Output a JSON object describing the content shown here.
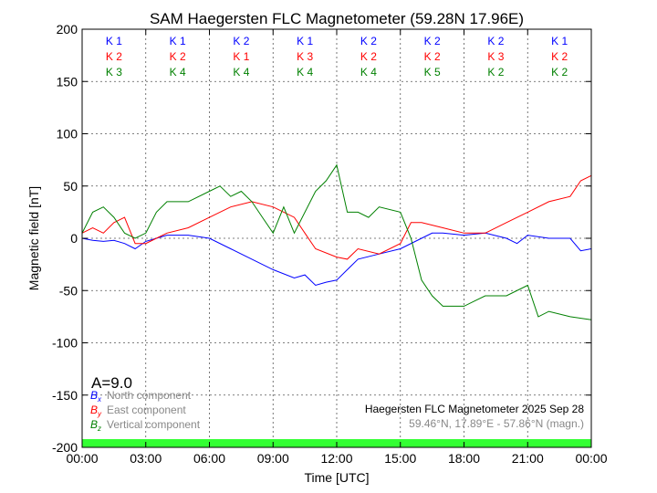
{
  "chart_data": {
    "type": "line",
    "title": "SAM Haegersten FLC Magnetometer (59.28N 17.96E)",
    "xlabel": "Time [UTC]",
    "ylabel": "Magnetic field [nT]",
    "xlim": [
      0,
      24
    ],
    "ylim": [
      -200,
      200
    ],
    "grid": true,
    "x_tick_labels": [
      "00:00",
      "03:00",
      "06:00",
      "09:00",
      "12:00",
      "15:00",
      "18:00",
      "21:00",
      "00:00"
    ],
    "y_ticks": [
      200,
      150,
      100,
      50,
      0,
      -50,
      -100,
      -150,
      -200
    ],
    "activity_index": "A=9.0",
    "footer_title": "Haegersten FLC Magnetometer 2025 Sep 28",
    "footer_coords": "59.46°N, 17.89°E - 57.86°N (magn.)",
    "k_indices": {
      "x": [
        "K 1",
        "K 1",
        "K 2",
        "K 1",
        "K 2",
        "K 2",
        "K 2",
        "K 1"
      ],
      "y": [
        "K 2",
        "K 2",
        "K 1",
        "K 3",
        "K 2",
        "K 2",
        "K 3",
        "K 2"
      ],
      "z": [
        "K 3",
        "K 4",
        "K 4",
        "K 4",
        "K 4",
        "K 5",
        "K 2",
        "K 2"
      ]
    },
    "status_bar_color": "#33ff33",
    "series": [
      {
        "name": "North component",
        "symbol": "B",
        "sub": "x",
        "color": "#0000ff",
        "x": [
          0,
          0.5,
          1,
          1.5,
          2,
          2.5,
          3,
          3.5,
          4,
          5,
          6,
          7,
          8,
          9,
          10,
          10.5,
          11,
          11.5,
          12,
          12.5,
          13,
          14,
          15,
          16,
          16.5,
          17,
          18,
          19,
          20,
          20.5,
          21,
          22,
          23,
          23.5,
          24
        ],
        "y": [
          0,
          -2,
          -3,
          -2,
          -5,
          -10,
          -3,
          0,
          3,
          3,
          0,
          -10,
          -20,
          -30,
          -38,
          -35,
          -45,
          -42,
          -40,
          -30,
          -20,
          -15,
          -10,
          0,
          5,
          5,
          3,
          5,
          0,
          -5,
          3,
          0,
          0,
          -12,
          -10
        ]
      },
      {
        "name": "East component",
        "symbol": "B",
        "sub": "y",
        "color": "#ff0000",
        "x": [
          0,
          0.5,
          1,
          1.5,
          2,
          2.5,
          3,
          3.5,
          4,
          5,
          6,
          7,
          8,
          9,
          10,
          10.5,
          11,
          12,
          12.5,
          13,
          14,
          15,
          15.5,
          16,
          17,
          18,
          19,
          20,
          21,
          22,
          23,
          23.5,
          24
        ],
        "y": [
          5,
          10,
          5,
          15,
          20,
          -5,
          -5,
          0,
          5,
          10,
          20,
          30,
          35,
          30,
          20,
          5,
          -10,
          -18,
          -20,
          -10,
          -15,
          -5,
          15,
          15,
          10,
          5,
          5,
          15,
          25,
          35,
          40,
          55,
          60
        ]
      },
      {
        "name": "Vertical component",
        "symbol": "B",
        "sub": "z",
        "color": "#008000",
        "x": [
          0,
          0.5,
          1,
          1.5,
          2,
          2.5,
          3,
          3.5,
          4,
          5,
          6,
          6.5,
          7,
          7.5,
          8,
          8.5,
          9,
          9.5,
          10,
          11,
          11.5,
          12,
          12.5,
          13,
          13.5,
          14,
          15,
          15.5,
          16,
          16.5,
          17,
          18,
          18.5,
          19,
          20,
          21,
          21.5,
          22,
          23,
          24
        ],
        "y": [
          5,
          25,
          30,
          20,
          5,
          0,
          5,
          25,
          35,
          35,
          45,
          50,
          40,
          45,
          35,
          20,
          5,
          30,
          5,
          45,
          55,
          70,
          25,
          25,
          20,
          30,
          25,
          0,
          -40,
          -55,
          -65,
          -65,
          -60,
          -55,
          -55,
          -45,
          -75,
          -70,
          -75,
          -78
        ]
      }
    ]
  }
}
